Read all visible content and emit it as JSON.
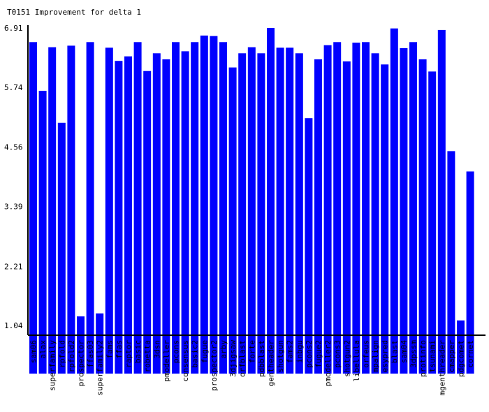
{
  "colors": {
    "bar": "#0000ff",
    "axis": "#000000",
    "background": "#ffffff"
  },
  "chart_data": {
    "type": "bar",
    "title": "T0151 Improvement for delta 1",
    "xlabel": "",
    "ylabel": "",
    "grid": false,
    "legend": "none",
    "baseline": 0.85,
    "ylim": [
      0.0,
      6.91
    ],
    "yticks": [
      "1.04",
      "2.21",
      "3.39",
      "4.56",
      "5.74",
      "6.91"
    ],
    "categories": [
      "sam06",
      "alax",
      "superfamily",
      "rpfold",
      "rpfold2",
      "prospector",
      "ffas03",
      "superfamily2",
      "fams",
      "ffas",
      "raptor",
      "basic",
      "robetta",
      "3dsn",
      "pmodeller",
      "pcons",
      "consensus",
      "basic2",
      "fugue",
      "prospector2",
      "arby",
      "3djigsaw",
      "orfblast",
      "forte",
      "pdbblast",
      "gentheader",
      "shotgun",
      "fams2",
      "inbgu",
      "pcons2",
      "fugue2",
      "pmodeller2",
      "pcons3",
      "shotgun2",
      "libellula",
      "orfeus",
      "mpalign",
      "esypred",
      "blast",
      "sam04",
      "3dpssm",
      "protinfo",
      "tsunami",
      "mgenthreader",
      "cmapper",
      "pdgcomet",
      "cornet"
    ],
    "values": [
      6.63,
      5.67,
      6.53,
      5.04,
      6.56,
      1.22,
      6.63,
      1.28,
      6.52,
      6.26,
      6.35,
      6.63,
      6.06,
      6.41,
      6.29,
      6.63,
      6.45,
      6.63,
      6.76,
      6.75,
      6.63,
      6.13,
      6.41,
      6.53,
      6.41,
      6.91,
      6.52,
      6.52,
      6.41,
      5.13,
      6.29,
      6.57,
      6.63,
      6.25,
      6.62,
      6.63,
      6.41,
      6.19,
      6.9,
      6.51,
      6.63,
      6.29,
      6.05,
      6.87,
      4.48,
      1.14,
      4.08
    ]
  }
}
